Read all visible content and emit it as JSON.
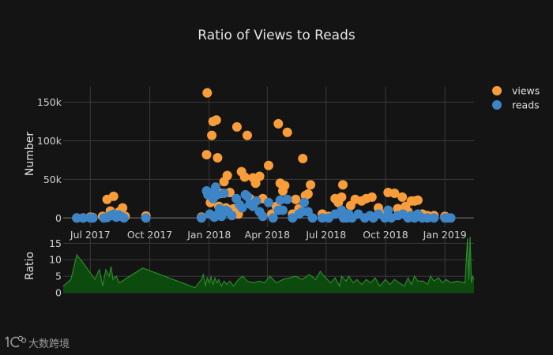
{
  "watermark": "大数跨境",
  "chart_data": [
    {
      "type": "scatter",
      "title": "Ratio of Views to Reads",
      "ylabel": "Number",
      "x_range": [
        "2017-05-20",
        "2019-02-15"
      ],
      "ylim": [
        -12000,
        170000
      ],
      "y_ticks": [
        0,
        50000,
        100000,
        150000
      ],
      "y_tick_labels": [
        "0",
        "50k",
        "100k",
        "150k"
      ],
      "x_ticks": [
        "2017-07-01",
        "2017-10-01",
        "2018-01-01",
        "2018-04-01",
        "2018-07-01",
        "2018-10-01",
        "2019-01-01"
      ],
      "x_tick_labels": [
        "Jul 2017",
        "Oct 2017",
        "Jan 2018",
        "Apr 2018",
        "Jul 2018",
        "Oct 2018",
        "Jan 2019"
      ],
      "grid": true,
      "legend_position": "top-right",
      "series": [
        {
          "name": "views",
          "color": "#f99d3a",
          "points": [
            [
              "2017-06-10",
              0
            ],
            [
              "2017-06-20",
              0
            ],
            [
              "2017-07-01",
              1000
            ],
            [
              "2017-07-05",
              500
            ],
            [
              "2017-07-20",
              2000
            ],
            [
              "2017-07-27",
              24000
            ],
            [
              "2017-08-01",
              9000
            ],
            [
              "2017-08-06",
              28000
            ],
            [
              "2017-08-10",
              5000
            ],
            [
              "2017-08-15",
              8000
            ],
            [
              "2017-08-20",
              13000
            ],
            [
              "2017-08-24",
              2000
            ],
            [
              "2017-09-25",
              2500
            ],
            [
              "2017-12-20",
              1000
            ],
            [
              "2017-12-28",
              82000
            ],
            [
              "2017-12-29",
              162000
            ],
            [
              "2018-01-03",
              20000
            ],
            [
              "2018-01-05",
              107000
            ],
            [
              "2018-01-07",
              125000
            ],
            [
              "2018-01-10",
              35000
            ],
            [
              "2018-01-12",
              127000
            ],
            [
              "2018-01-14",
              78000
            ],
            [
              "2018-01-16",
              15000
            ],
            [
              "2018-01-20",
              32000
            ],
            [
              "2018-01-24",
              47000
            ],
            [
              "2018-01-27",
              13000
            ],
            [
              "2018-01-29",
              55000
            ],
            [
              "2018-02-02",
              33000
            ],
            [
              "2018-02-08",
              12000
            ],
            [
              "2018-02-13",
              118000
            ],
            [
              "2018-02-15",
              5000
            ],
            [
              "2018-02-20",
              60000
            ],
            [
              "2018-02-25",
              53000
            ],
            [
              "2018-03-01",
              107000
            ],
            [
              "2018-03-05",
              25000
            ],
            [
              "2018-03-10",
              52000
            ],
            [
              "2018-03-14",
              45000
            ],
            [
              "2018-03-20",
              54000
            ],
            [
              "2018-03-25",
              25000
            ],
            [
              "2018-04-03",
              68000
            ],
            [
              "2018-04-08",
              5000
            ],
            [
              "2018-04-15",
              15000
            ],
            [
              "2018-04-18",
              122000
            ],
            [
              "2018-04-21",
              45000
            ],
            [
              "2018-04-25",
              35000
            ],
            [
              "2018-04-28",
              42000
            ],
            [
              "2018-05-02",
              111000
            ],
            [
              "2018-05-10",
              5000
            ],
            [
              "2018-05-15",
              24000
            ],
            [
              "2018-05-20",
              12000
            ],
            [
              "2018-05-26",
              77000
            ],
            [
              "2018-05-30",
              29000
            ],
            [
              "2018-06-03",
              31000
            ],
            [
              "2018-06-07",
              43000
            ],
            [
              "2018-06-25",
              5000
            ],
            [
              "2018-07-05",
              2000
            ],
            [
              "2018-07-15",
              25000
            ],
            [
              "2018-07-20",
              20000
            ],
            [
              "2018-07-25",
              27000
            ],
            [
              "2018-07-27",
              43000
            ],
            [
              "2018-08-01",
              5000
            ],
            [
              "2018-08-08",
              16000
            ],
            [
              "2018-08-15",
              24000
            ],
            [
              "2018-08-25",
              22000
            ],
            [
              "2018-09-01",
              25000
            ],
            [
              "2018-09-10",
              27000
            ],
            [
              "2018-09-20",
              13000
            ],
            [
              "2018-09-30",
              5000
            ],
            [
              "2018-10-05",
              33000
            ],
            [
              "2018-10-15",
              32000
            ],
            [
              "2018-10-20",
              12000
            ],
            [
              "2018-10-27",
              27000
            ],
            [
              "2018-11-01",
              15000
            ],
            [
              "2018-11-05",
              8000
            ],
            [
              "2018-11-10",
              22000
            ],
            [
              "2018-11-15",
              22000
            ],
            [
              "2018-11-20",
              23000
            ],
            [
              "2018-11-27",
              5000
            ],
            [
              "2018-12-05",
              3000
            ],
            [
              "2018-12-15",
              3000
            ],
            [
              "2019-01-01",
              2000
            ]
          ]
        },
        {
          "name": "reads",
          "color": "#3d85c6",
          "points": [
            [
              "2017-06-10",
              0
            ],
            [
              "2017-06-20",
              0
            ],
            [
              "2017-07-01",
              0
            ],
            [
              "2017-07-05",
              0
            ],
            [
              "2017-07-22",
              0
            ],
            [
              "2017-07-27",
              500
            ],
            [
              "2017-08-01",
              3000
            ],
            [
              "2017-08-06",
              5000
            ],
            [
              "2017-08-10",
              1000
            ],
            [
              "2017-08-14",
              4000
            ],
            [
              "2017-08-18",
              2000
            ],
            [
              "2017-08-22",
              0
            ],
            [
              "2017-09-25",
              0
            ],
            [
              "2017-12-20",
              0
            ],
            [
              "2017-12-28",
              35000
            ],
            [
              "2017-12-30",
              30000
            ],
            [
              "2018-01-02",
              5000
            ],
            [
              "2018-01-05",
              33000
            ],
            [
              "2018-01-07",
              25000
            ],
            [
              "2018-01-09",
              1000
            ],
            [
              "2018-01-11",
              40000
            ],
            [
              "2018-01-13",
              30000
            ],
            [
              "2018-01-15",
              5000
            ],
            [
              "2018-01-17",
              12000
            ],
            [
              "2018-01-20",
              2000
            ],
            [
              "2018-01-24",
              32000
            ],
            [
              "2018-01-27",
              10000
            ],
            [
              "2018-01-30",
              8000
            ],
            [
              "2018-02-05",
              3000
            ],
            [
              "2018-02-12",
              25000
            ],
            [
              "2018-02-17",
              17000
            ],
            [
              "2018-02-21",
              13000
            ],
            [
              "2018-02-26",
              30000
            ],
            [
              "2018-03-01",
              28000
            ],
            [
              "2018-03-05",
              18000
            ],
            [
              "2018-03-10",
              15000
            ],
            [
              "2018-03-15",
              22000
            ],
            [
              "2018-03-20",
              8000
            ],
            [
              "2018-03-25",
              2000
            ],
            [
              "2018-04-03",
              20000
            ],
            [
              "2018-04-10",
              0
            ],
            [
              "2018-04-18",
              10000
            ],
            [
              "2018-04-21",
              23000
            ],
            [
              "2018-04-25",
              10000
            ],
            [
              "2018-05-02",
              24000
            ],
            [
              "2018-05-10",
              0
            ],
            [
              "2018-05-20",
              5000
            ],
            [
              "2018-05-25",
              8000
            ],
            [
              "2018-05-28",
              20000
            ],
            [
              "2018-06-03",
              8000
            ],
            [
              "2018-06-10",
              0
            ],
            [
              "2018-06-25",
              0
            ],
            [
              "2018-07-05",
              0
            ],
            [
              "2018-07-15",
              5000
            ],
            [
              "2018-07-25",
              10000
            ],
            [
              "2018-07-28",
              0
            ],
            [
              "2018-08-02",
              0
            ],
            [
              "2018-08-05",
              5000
            ],
            [
              "2018-08-10",
              0
            ],
            [
              "2018-08-20",
              5000
            ],
            [
              "2018-08-30",
              0
            ],
            [
              "2018-09-07",
              3000
            ],
            [
              "2018-09-12",
              0
            ],
            [
              "2018-09-20",
              5000
            ],
            [
              "2018-09-30",
              0
            ],
            [
              "2018-10-05",
              10000
            ],
            [
              "2018-10-10",
              0
            ],
            [
              "2018-10-20",
              3000
            ],
            [
              "2018-10-28",
              5000
            ],
            [
              "2018-11-05",
              0
            ],
            [
              "2018-11-10",
              3000
            ],
            [
              "2018-11-15",
              0
            ],
            [
              "2018-11-20",
              5000
            ],
            [
              "2018-11-27",
              0
            ],
            [
              "2018-12-05",
              0
            ],
            [
              "2018-12-15",
              0
            ],
            [
              "2019-01-01",
              0
            ],
            [
              "2019-01-05",
              0
            ],
            [
              "2019-01-10",
              0
            ]
          ]
        }
      ]
    },
    {
      "type": "area",
      "ylabel": "Ratio",
      "x_range": [
        "2017-05-20",
        "2019-02-15"
      ],
      "ylim": [
        0,
        17
      ],
      "y_ticks": [
        0,
        5,
        10,
        15
      ],
      "y_tick_labels": [
        "0",
        "5",
        "10",
        "15"
      ],
      "grid": true,
      "color": "#2a8a2a",
      "fill": "#0d4a0d",
      "points": [
        [
          "2017-05-20",
          2
        ],
        [
          "2017-06-01",
          4
        ],
        [
          "2017-06-10",
          11.5
        ],
        [
          "2017-06-20",
          9
        ],
        [
          "2017-07-01",
          6
        ],
        [
          "2017-07-08",
          4
        ],
        [
          "2017-07-15",
          7
        ],
        [
          "2017-07-20",
          2
        ],
        [
          "2017-07-25",
          7
        ],
        [
          "2017-07-30",
          5
        ],
        [
          "2017-08-02",
          8
        ],
        [
          "2017-08-05",
          4
        ],
        [
          "2017-08-10",
          5
        ],
        [
          "2017-08-15",
          3
        ],
        [
          "2017-09-20",
          7.5
        ],
        [
          "2017-12-10",
          1.5
        ],
        [
          "2017-12-20",
          4
        ],
        [
          "2017-12-23",
          5.5
        ],
        [
          "2017-12-26",
          2
        ],
        [
          "2017-12-29",
          4.5
        ],
        [
          "2018-01-01",
          3
        ],
        [
          "2018-01-04",
          4.8
        ],
        [
          "2018-01-07",
          2.5
        ],
        [
          "2018-01-10",
          4.5
        ],
        [
          "2018-01-13",
          3
        ],
        [
          "2018-01-16",
          4
        ],
        [
          "2018-01-20",
          2
        ],
        [
          "2018-01-24",
          3.5
        ],
        [
          "2018-01-28",
          2.5
        ],
        [
          "2018-02-02",
          3.5
        ],
        [
          "2018-02-08",
          2
        ],
        [
          "2018-02-15",
          4
        ],
        [
          "2018-02-22",
          5
        ],
        [
          "2018-03-01",
          3.5
        ],
        [
          "2018-03-10",
          3
        ],
        [
          "2018-03-20",
          3.5
        ],
        [
          "2018-03-28",
          3
        ],
        [
          "2018-04-05",
          5
        ],
        [
          "2018-04-15",
          3
        ],
        [
          "2018-04-25",
          4
        ],
        [
          "2018-05-05",
          4.5
        ],
        [
          "2018-05-15",
          5
        ],
        [
          "2018-05-25",
          4
        ],
        [
          "2018-06-05",
          5.5
        ],
        [
          "2018-06-15",
          4
        ],
        [
          "2018-06-22",
          6.5
        ],
        [
          "2018-06-28",
          5
        ],
        [
          "2018-07-08",
          3
        ],
        [
          "2018-07-15",
          4.5
        ],
        [
          "2018-07-22",
          2
        ],
        [
          "2018-07-25",
          5
        ],
        [
          "2018-08-01",
          3.5
        ],
        [
          "2018-08-05",
          5
        ],
        [
          "2018-08-12",
          3
        ],
        [
          "2018-08-18",
          4
        ],
        [
          "2018-08-25",
          2.5
        ],
        [
          "2018-09-01",
          4
        ],
        [
          "2018-09-08",
          3
        ],
        [
          "2018-09-15",
          4.5
        ],
        [
          "2018-09-22",
          2
        ],
        [
          "2018-10-01",
          4
        ],
        [
          "2018-10-08",
          2.5
        ],
        [
          "2018-10-15",
          4
        ],
        [
          "2018-10-22",
          3
        ],
        [
          "2018-10-30",
          2
        ],
        [
          "2018-11-05",
          4.5
        ],
        [
          "2018-11-10",
          2.5
        ],
        [
          "2018-11-15",
          5
        ],
        [
          "2018-11-20",
          3.5
        ],
        [
          "2018-11-28",
          3.5
        ],
        [
          "2018-12-05",
          2.5
        ],
        [
          "2018-12-10",
          5
        ],
        [
          "2018-12-15",
          3.5
        ],
        [
          "2018-12-22",
          4.5
        ],
        [
          "2018-12-28",
          3
        ],
        [
          "2019-01-03",
          4
        ],
        [
          "2019-01-10",
          3
        ],
        [
          "2019-01-20",
          3.5
        ],
        [
          "2019-02-01",
          3
        ],
        [
          "2019-02-05",
          16.5
        ],
        [
          "2019-02-07",
          4
        ],
        [
          "2019-02-09",
          17
        ],
        [
          "2019-02-11",
          3
        ],
        [
          "2019-02-13",
          5
        ],
        [
          "2019-02-15",
          4
        ]
      ]
    }
  ]
}
